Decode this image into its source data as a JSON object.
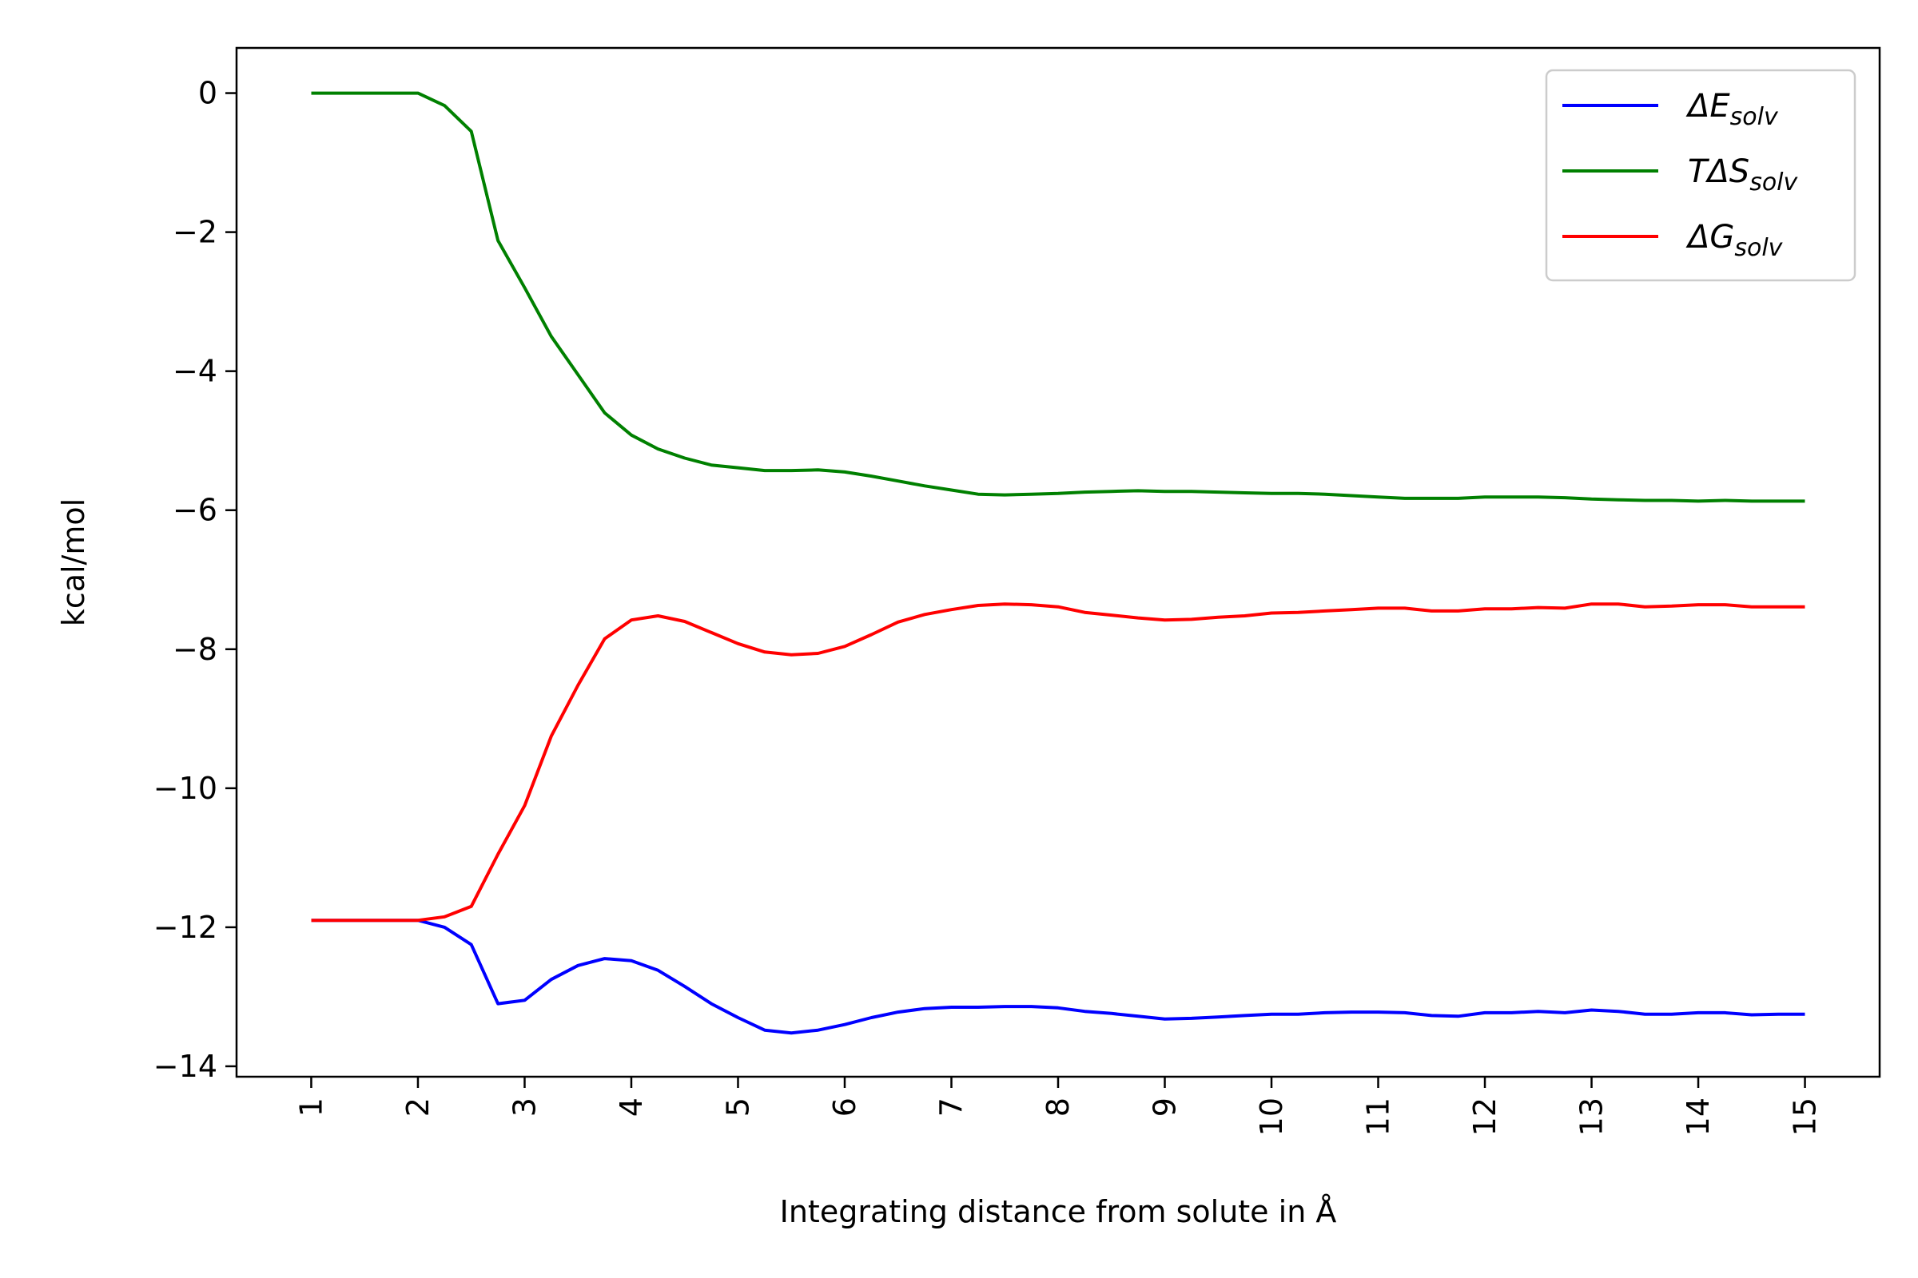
{
  "chart_data": {
    "type": "line",
    "xlabel": "Integrating distance from solute in Å",
    "ylabel": "kcal/mol",
    "xlim": [
      0.3,
      15.7
    ],
    "ylim": [
      -14.15,
      0.65
    ],
    "xticks": [
      1,
      2,
      3,
      4,
      5,
      6,
      7,
      8,
      9,
      10,
      11,
      12,
      13,
      14,
      15
    ],
    "xtick_labels": [
      "1",
      "2",
      "3",
      "4",
      "5",
      "6",
      "7",
      "8",
      "9",
      "10",
      "11",
      "12",
      "13",
      "14",
      "15"
    ],
    "yticks": [
      0,
      -2,
      -4,
      -6,
      -8,
      -10,
      -12,
      -14
    ],
    "ytick_labels": [
      "0",
      "−2",
      "−4",
      "−6",
      "−8",
      "−10",
      "−12",
      "−14"
    ],
    "legend_position": "top-right",
    "grid": false,
    "x": [
      1,
      1.25,
      1.5,
      1.75,
      2,
      2.25,
      2.5,
      2.75,
      3,
      3.25,
      3.5,
      3.75,
      4,
      4.25,
      4.5,
      4.75,
      5,
      5.25,
      5.5,
      5.75,
      6,
      6.25,
      6.5,
      6.75,
      7,
      7.25,
      7.5,
      7.75,
      8,
      8.25,
      8.5,
      8.75,
      9,
      9.25,
      9.5,
      9.75,
      10,
      10.25,
      10.5,
      10.75,
      11,
      11.25,
      11.5,
      11.75,
      12,
      12.25,
      12.5,
      12.75,
      13,
      13.25,
      13.5,
      13.75,
      14,
      14.25,
      14.5,
      14.75,
      15
    ],
    "series": [
      {
        "name_main": "ΔE",
        "name_sub": "solv",
        "color": "#0000ff",
        "values": [
          -11.9,
          -11.9,
          -11.9,
          -11.9,
          -11.9,
          -12.0,
          -12.25,
          -13.1,
          -13.05,
          -12.75,
          -12.55,
          -12.45,
          -12.48,
          -12.62,
          -12.85,
          -13.1,
          -13.3,
          -13.48,
          -13.52,
          -13.48,
          -13.4,
          -13.3,
          -13.22,
          -13.17,
          -13.15,
          -13.15,
          -13.14,
          -13.14,
          -13.16,
          -13.21,
          -13.24,
          -13.28,
          -13.32,
          -13.31,
          -13.29,
          -13.27,
          -13.25,
          -13.25,
          -13.23,
          -13.22,
          -13.22,
          -13.23,
          -13.27,
          -13.28,
          -13.23,
          -13.23,
          -13.21,
          -13.23,
          -13.19,
          -13.21,
          -13.25,
          -13.25,
          -13.23,
          -13.23,
          -13.26,
          -13.25,
          -13.25
        ]
      },
      {
        "name_main": "TΔS",
        "name_sub": "solv",
        "color": "#008000",
        "values": [
          0,
          0,
          0,
          0,
          0,
          -0.18,
          -0.55,
          -2.12,
          -2.8,
          -3.5,
          -4.05,
          -4.6,
          -4.92,
          -5.12,
          -5.25,
          -5.35,
          -5.39,
          -5.43,
          -5.43,
          -5.42,
          -5.45,
          -5.51,
          -5.58,
          -5.65,
          -5.71,
          -5.77,
          -5.78,
          -5.77,
          -5.76,
          -5.74,
          -5.73,
          -5.72,
          -5.73,
          -5.73,
          -5.74,
          -5.75,
          -5.76,
          -5.76,
          -5.77,
          -5.79,
          -5.81,
          -5.83,
          -5.83,
          -5.83,
          -5.81,
          -5.81,
          -5.81,
          -5.82,
          -5.84,
          -5.85,
          -5.86,
          -5.86,
          -5.87,
          -5.86,
          -5.87,
          -5.87,
          -5.87
        ]
      },
      {
        "name_main": "ΔG",
        "name_sub": "solv",
        "color": "#ff0000",
        "values": [
          -11.9,
          -11.9,
          -11.9,
          -11.9,
          -11.9,
          -11.85,
          -11.7,
          -10.95,
          -10.25,
          -9.25,
          -8.52,
          -7.85,
          -7.58,
          -7.52,
          -7.6,
          -7.76,
          -7.92,
          -8.04,
          -8.08,
          -8.06,
          -7.96,
          -7.79,
          -7.61,
          -7.5,
          -7.43,
          -7.37,
          -7.35,
          -7.36,
          -7.39,
          -7.47,
          -7.51,
          -7.55,
          -7.58,
          -7.57,
          -7.54,
          -7.52,
          -7.48,
          -7.47,
          -7.45,
          -7.43,
          -7.41,
          -7.41,
          -7.45,
          -7.45,
          -7.42,
          -7.42,
          -7.4,
          -7.41,
          -7.35,
          -7.35,
          -7.39,
          -7.38,
          -7.36,
          -7.36,
          -7.39,
          -7.39,
          -7.39
        ]
      }
    ]
  }
}
